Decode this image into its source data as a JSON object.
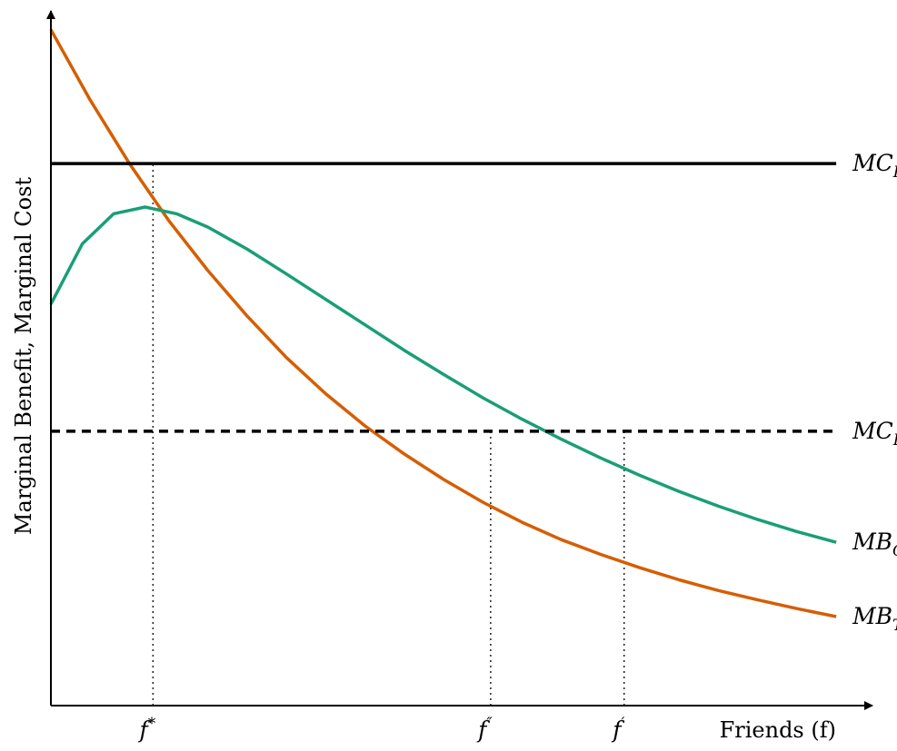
{
  "chart_data": {
    "type": "line",
    "xlabel": "Friends (f)",
    "ylabel": "Marginal Benefit, Marginal Cost",
    "x_ticks": [
      {
        "label": "f*",
        "base": "f",
        "sup": "*",
        "x": 1.3
      },
      {
        "label": "f″",
        "base": "f",
        "sup": "″",
        "x": 5.6
      },
      {
        "label": "f′",
        "base": "f",
        "sup": "′",
        "x": 7.3
      }
    ],
    "xlim": [
      0,
      10.3
    ],
    "ylim": [
      0,
      10.3
    ],
    "grid": false,
    "legend": "none",
    "series": [
      {
        "name": "MB_T",
        "label_base": "MB",
        "label_sub": "T",
        "color": "#d55e00",
        "style": "solid",
        "x": [
          0,
          0.5,
          1,
          1.5,
          2,
          2.5,
          3,
          3.5,
          4,
          4.5,
          5,
          5.5,
          6,
          6.5,
          7,
          7.5,
          8,
          8.5,
          9,
          9.5,
          10
        ],
        "y": [
          10.1,
          9.05,
          8.1,
          7.25,
          6.5,
          5.82,
          5.2,
          4.66,
          4.18,
          3.76,
          3.38,
          3.04,
          2.74,
          2.48,
          2.26,
          2.06,
          1.88,
          1.72,
          1.58,
          1.45,
          1.33
        ]
      },
      {
        "name": "MB_C",
        "label_base": "MB",
        "label_sub": "C",
        "color": "#1a9e77",
        "style": "solid",
        "x": [
          0,
          0.4,
          0.8,
          1.2,
          1.6,
          2.0,
          2.5,
          3,
          3.5,
          4,
          4.5,
          5,
          5.5,
          6,
          6.5,
          7,
          7.5,
          8,
          8.5,
          9,
          9.5,
          10
        ],
        "y": [
          6.0,
          6.9,
          7.35,
          7.45,
          7.35,
          7.15,
          6.82,
          6.45,
          6.07,
          5.69,
          5.31,
          4.95,
          4.6,
          4.28,
          3.98,
          3.7,
          3.44,
          3.2,
          2.98,
          2.78,
          2.6,
          2.44
        ]
      },
      {
        "name": "MC_H",
        "label_base": "MC",
        "label_sub": "H",
        "color": "#000000",
        "style": "solid",
        "x": [
          0,
          10
        ],
        "y": [
          8.1,
          8.1
        ]
      },
      {
        "name": "MC_L",
        "label_base": "MC",
        "label_sub": "L",
        "color": "#000000",
        "style": "dashed",
        "x": [
          0,
          10
        ],
        "y": [
          4.1,
          4.1
        ]
      }
    ],
    "guides": [
      {
        "x": 1.3,
        "y": 8.1
      },
      {
        "x": 5.6,
        "y": 4.1
      },
      {
        "x": 7.3,
        "y": 4.1
      }
    ]
  }
}
